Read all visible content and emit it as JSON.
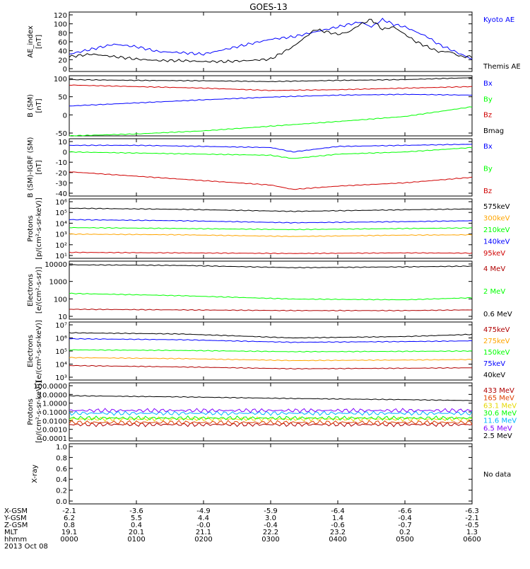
{
  "title": "GOES-13",
  "colors": {
    "black": "#000000",
    "blue": "#0000ff",
    "green": "#00ff00",
    "red": "#d00000",
    "darkred": "#b00000",
    "orange": "#ffa500",
    "cyan": "#00b4ff",
    "purple": "#8000ff",
    "yellow": "#e6d800",
    "orangered": "#e04000"
  },
  "chart_data": [
    {
      "type": "line",
      "id": "ae",
      "ylabel": [
        "AE_index",
        "[nT]"
      ],
      "yticks": [
        "120",
        "100",
        "80",
        "60",
        "40",
        "20",
        "0"
      ],
      "ylim": [
        0,
        120
      ],
      "series": [
        {
          "name": "Kyoto AE",
          "color": "#0000ff",
          "x": [
            0,
            20,
            40,
            60,
            80,
            100,
            120,
            140,
            160,
            180,
            200,
            220,
            240,
            250,
            260,
            270,
            280,
            290,
            300,
            310,
            320,
            330,
            340,
            350,
            360
          ],
          "values": [
            35,
            45,
            55,
            50,
            40,
            38,
            35,
            45,
            55,
            65,
            70,
            80,
            90,
            95,
            100,
            90,
            105,
            95,
            90,
            80,
            70,
            55,
            45,
            35,
            25
          ]
        },
        {
          "name": "Themis AE",
          "color": "#000000",
          "x": [
            0,
            20,
            40,
            60,
            80,
            100,
            120,
            140,
            160,
            180,
            200,
            220,
            240,
            250,
            260,
            270,
            280,
            290,
            300,
            310,
            320,
            330,
            340,
            350,
            360
          ],
          "values": [
            30,
            35,
            30,
            25,
            22,
            22,
            20,
            20,
            22,
            25,
            50,
            85,
            75,
            80,
            95,
            105,
            85,
            90,
            75,
            60,
            50,
            40,
            40,
            30,
            30
          ]
        }
      ]
    },
    {
      "type": "line",
      "id": "bsm",
      "ylabel": [
        "B (SM)",
        "[nT]"
      ],
      "yticks": [
        "100",
        "50",
        "0",
        "-50"
      ],
      "ylim": [
        -55,
        100
      ],
      "series": [
        {
          "name": "Bx",
          "color": "#0000ff",
          "x": [
            0,
            60,
            120,
            180,
            240,
            300,
            360
          ],
          "values": [
            22,
            30,
            38,
            45,
            50,
            52,
            50
          ]
        },
        {
          "name": "By",
          "color": "#00ff00",
          "x": [
            0,
            60,
            120,
            180,
            240,
            300,
            360
          ],
          "values": [
            -55,
            -50,
            -42,
            -30,
            -18,
            -5,
            20
          ]
        },
        {
          "name": "Bz",
          "color": "#d00000",
          "x": [
            0,
            60,
            120,
            180,
            240,
            300,
            360
          ],
          "values": [
            76,
            72,
            68,
            62,
            64,
            68,
            72
          ]
        },
        {
          "name": "Bmag",
          "color": "#000000",
          "x": [
            0,
            60,
            120,
            180,
            240,
            300,
            360
          ],
          "values": [
            90,
            88,
            87,
            85,
            88,
            90,
            95
          ]
        }
      ]
    },
    {
      "type": "line",
      "id": "bigrf",
      "ylabel": [
        "B (SM)-IGRF (SM)",
        "[nT]"
      ],
      "yticks": [
        "10",
        "0",
        "-10",
        "-20",
        "-30",
        "-40"
      ],
      "ylim": [
        -42,
        10
      ],
      "series": [
        {
          "name": "Bx",
          "color": "#0000ff",
          "x": [
            0,
            60,
            120,
            180,
            200,
            240,
            300,
            360
          ],
          "values": [
            4,
            4,
            3,
            2,
            -2,
            3,
            4,
            5
          ]
        },
        {
          "name": "By",
          "color": "#00ff00",
          "x": [
            0,
            60,
            120,
            180,
            200,
            240,
            300,
            360
          ],
          "values": [
            -2,
            -3,
            -4,
            -5,
            -8,
            -4,
            -2,
            2
          ]
        },
        {
          "name": "Bz",
          "color": "#d00000",
          "x": [
            0,
            60,
            120,
            180,
            200,
            240,
            300,
            360
          ],
          "values": [
            -20,
            -24,
            -28,
            -32,
            -36,
            -33,
            -30,
            -25
          ]
        }
      ]
    },
    {
      "type": "line",
      "id": "protons_kev",
      "log": true,
      "ylabel": [
        "Protons",
        "[p/(cm²-s-sr-keV)]"
      ],
      "yticks": [
        "10⁶",
        "10⁵",
        "10⁴",
        "10³",
        "10²",
        "10¹"
      ],
      "ylim": [
        6,
        1000000
      ],
      "series": [
        {
          "name": "575keV",
          "color": "#000000",
          "x": [
            0,
            100,
            200,
            300,
            360
          ],
          "values": [
            150000,
            120000,
            80000,
            110000,
            130000
          ]
        },
        {
          "name": "300keV",
          "color": "#ffa500",
          "x": [
            0,
            100,
            200,
            300,
            360
          ],
          "values": [
            800,
            700,
            500,
            650,
            700
          ]
        },
        {
          "name": "210keV",
          "color": "#00ff00",
          "x": [
            0,
            100,
            200,
            300,
            360
          ],
          "values": [
            3000,
            2500,
            2000,
            2500,
            2800
          ]
        },
        {
          "name": "140keV",
          "color": "#0000ff",
          "x": [
            0,
            100,
            200,
            300,
            360
          ],
          "values": [
            15000,
            12000,
            8000,
            10000,
            12000
          ]
        },
        {
          "name": "95keV",
          "color": "#d00000",
          "x": [
            0,
            100,
            200,
            300,
            360
          ],
          "values": [
            20,
            18,
            16,
            18,
            17
          ]
        }
      ]
    },
    {
      "type": "line",
      "id": "electrons_mev",
      "log": true,
      "ylabel": [
        "Electrons",
        "[e/(cm²-s-sr)]"
      ],
      "yticks": [
        "10000",
        "1000",
        "100",
        "10"
      ],
      "ylim": [
        3,
        10000
      ],
      "series": [
        {
          "name": "4 MeV",
          "color": "#b00000",
          "x": [
            0,
            100,
            200,
            300,
            360
          ],
          "values": [
            12,
            11,
            10,
            10,
            11
          ]
        },
        {
          "name": "2 MeV",
          "color": "#00ff00",
          "x": [
            0,
            100,
            200,
            300,
            360
          ],
          "values": [
            110,
            80,
            50,
            45,
            60
          ]
        },
        {
          "name": "0.6 MeV",
          "color": "#000000",
          "x": [
            0,
            100,
            200,
            300,
            360
          ],
          "values": [
            6000,
            5500,
            4000,
            4500,
            5000
          ]
        }
      ]
    },
    {
      "type": "line",
      "id": "electrons_kev",
      "log": true,
      "ylabel": [
        "Electrons",
        "[e/(cm²-s-sr-keV)]"
      ],
      "yticks": [
        "10⁷",
        "10⁶",
        "10⁵",
        "10⁴",
        "10³"
      ],
      "ylim": [
        1000,
        10000000
      ],
      "series": [
        {
          "name": "475keV",
          "color": "#b00000",
          "x": [
            0,
            100,
            200,
            300,
            360
          ],
          "values": [
            10000,
            8000,
            6000,
            6500,
            7000
          ]
        },
        {
          "name": "275keV",
          "color": "#ffa500",
          "x": [
            0,
            100,
            200,
            300,
            360
          ],
          "values": [
            35000,
            30000,
            22000,
            24000,
            26000
          ]
        },
        {
          "name": "150keV",
          "color": "#00ff00",
          "x": [
            0,
            100,
            200,
            300,
            360
          ],
          "values": [
            120000,
            110000,
            90000,
            95000,
            100000
          ]
        },
        {
          "name": "75keV",
          "color": "#0000ff",
          "x": [
            0,
            100,
            200,
            300,
            360
          ],
          "values": [
            700000,
            600000,
            400000,
            450000,
            500000
          ]
        },
        {
          "name": "40keV",
          "color": "#000000",
          "x": [
            0,
            100,
            200,
            300,
            360
          ],
          "values": [
            1800000,
            1500000,
            800000,
            1000000,
            1400000
          ]
        }
      ]
    },
    {
      "type": "line",
      "id": "protons_mev",
      "log": true,
      "ylabel": [
        "Protons",
        "[p/(cm²-s-sr-keV)]"
      ],
      "yticks": [
        "100.0000",
        "10.0000",
        "1.0000",
        "0.1000",
        "0.0100",
        "0.0010",
        "0.0001"
      ],
      "ylim": [
        5e-05,
        100
      ],
      "series": [
        {
          "name": "433 MeV",
          "color": "#b00000",
          "x": [
            0,
            100,
            200,
            300,
            360
          ],
          "values": [
            0.003,
            0.003,
            0.003,
            0.003,
            0.003
          ]
        },
        {
          "name": "165 MeV",
          "color": "#e04000",
          "x": [
            0,
            100,
            200,
            300,
            360
          ],
          "values": [
            0.005,
            0.005,
            0.005,
            0.005,
            0.005
          ]
        },
        {
          "name": "63.1 MeV",
          "color": "#e6d800",
          "x": [
            0,
            100,
            200,
            300,
            360
          ],
          "values": [
            0.012,
            0.012,
            0.012,
            0.012,
            0.012
          ]
        },
        {
          "name": "30.6 MeV",
          "color": "#00ff00",
          "x": [
            0,
            100,
            200,
            300,
            360
          ],
          "values": [
            0.015,
            0.015,
            0.015,
            0.015,
            0.015
          ]
        },
        {
          "name": "11.6 MeV",
          "color": "#00b4ff",
          "x": [
            0,
            100,
            200,
            300,
            360
          ],
          "values": [
            0.05,
            0.05,
            0.05,
            0.05,
            0.05
          ]
        },
        {
          "name": "6.5 MeV",
          "color": "#8000ff",
          "x": [
            0,
            100,
            200,
            300,
            360
          ],
          "values": [
            0.1,
            0.1,
            0.1,
            0.1,
            0.1
          ]
        },
        {
          "name": "2.5 MeV",
          "color": "#000000",
          "x": [
            0,
            100,
            200,
            300,
            360
          ],
          "values": [
            4,
            3,
            2,
            1.5,
            1.2
          ]
        }
      ]
    },
    {
      "type": "line",
      "id": "xray",
      "ylabel": [
        "X-ray"
      ],
      "yticks": [
        "1.0",
        "0.8",
        "0.6",
        "0.4",
        "0.2",
        "0.0"
      ],
      "ylim": [
        0,
        1
      ],
      "nodata_label": "No data",
      "series": []
    }
  ],
  "xaxis": {
    "rows": [
      {
        "label": "X-GSM",
        "values": [
          "-2.1",
          "-3.6",
          "-4.9",
          "-5.9",
          "-6.4",
          "-6.6",
          "-6.3"
        ]
      },
      {
        "label": "Y-GSM",
        "values": [
          "6.2",
          "5.5",
          "4.4",
          "3.0",
          "1.4",
          "-0.4",
          "-2.1"
        ]
      },
      {
        "label": "Z-GSM",
        "values": [
          "0.8",
          "0.4",
          "-0.0",
          "-0.4",
          "-0.6",
          "-0.7",
          "-0.5"
        ]
      },
      {
        "label": "MLT",
        "values": [
          "19.1",
          "20.1",
          "21.1",
          "22.2",
          "23.2",
          "0.2",
          "1.3"
        ]
      },
      {
        "label": "hhmm",
        "values": [
          "0000",
          "0100",
          "0200",
          "0300",
          "0400",
          "0500",
          "0600"
        ]
      }
    ],
    "date": "2013 Oct 08"
  }
}
